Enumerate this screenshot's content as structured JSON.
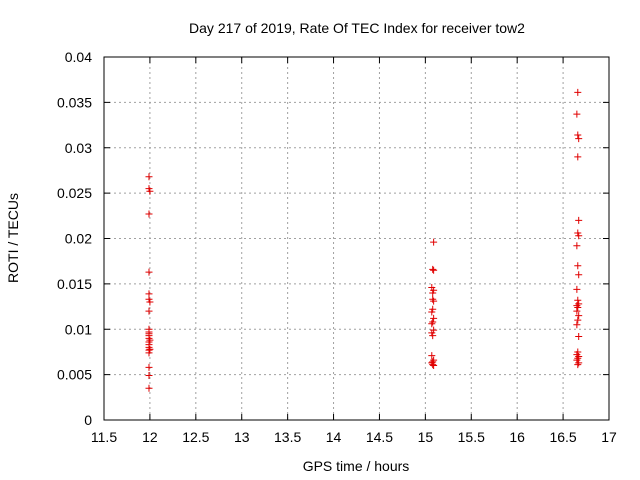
{
  "chart_data": {
    "type": "scatter",
    "title": "Day 217 of 2019, Rate Of TEC Index for receiver tow2",
    "xlabel": "GPS time / hours",
    "ylabel": "ROTI / TECUs",
    "xlim": [
      11.5,
      17
    ],
    "ylim": [
      0,
      0.04
    ],
    "x_ticks": [
      11.5,
      12,
      12.5,
      13,
      13.5,
      14,
      14.5,
      15,
      15.5,
      16,
      16.5,
      17
    ],
    "x_tick_labels": [
      "11.5",
      "12",
      "12.5",
      "13",
      "13.5",
      "14",
      "14.5",
      "15",
      "15.5",
      "16",
      "16.5",
      "17"
    ],
    "y_ticks": [
      0,
      0.005,
      0.01,
      0.015,
      0.02,
      0.025,
      0.03,
      0.035,
      0.04
    ],
    "y_tick_labels": [
      "0",
      "0.005",
      "0.01",
      "0.015",
      "0.02",
      "0.025",
      "0.03",
      "0.035",
      "0.04"
    ],
    "grid": true,
    "marker": "plus",
    "marker_color": "#e00000",
    "series": [
      {
        "x": [
          11.99,
          11.99,
          12.0,
          11.99,
          11.99,
          11.99,
          11.99,
          12.0,
          11.99,
          11.99,
          11.99,
          11.99,
          11.99,
          11.99,
          12.0,
          11.99,
          11.99,
          11.99,
          12.0,
          11.99,
          11.99,
          11.99,
          11.99,
          11.99
        ],
        "y": [
          0.0268,
          0.0255,
          0.0252,
          0.0227,
          0.0163,
          0.0139,
          0.0133,
          0.013,
          0.012,
          0.01,
          0.0097,
          0.0095,
          0.0093,
          0.009,
          0.0088,
          0.0086,
          0.0083,
          0.008,
          0.0078,
          0.0077,
          0.0074,
          0.0058,
          0.0049,
          0.0035
        ]
      },
      {
        "x": [
          15.09,
          15.08,
          15.09,
          15.07,
          15.09,
          15.08,
          15.08,
          15.09,
          15.08,
          15.07,
          15.09,
          15.08,
          15.07,
          15.09,
          15.07,
          15.08,
          15.07,
          15.09,
          15.08,
          15.07,
          15.08,
          15.09
        ],
        "y": [
          0.0196,
          0.0166,
          0.0165,
          0.0146,
          0.0143,
          0.014,
          0.0133,
          0.0131,
          0.0122,
          0.0119,
          0.0112,
          0.0108,
          0.0106,
          0.0099,
          0.0096,
          0.0093,
          0.0071,
          0.0066,
          0.0064,
          0.0063,
          0.0061,
          0.006
        ]
      },
      {
        "x": [
          16.66,
          16.65,
          16.66,
          16.67,
          16.66,
          16.67,
          16.66,
          16.67,
          16.65,
          16.66,
          16.67,
          16.65,
          16.66,
          16.67,
          16.65,
          16.66,
          16.65,
          16.67,
          16.66,
          16.65,
          16.67,
          16.66,
          16.65,
          16.67,
          16.66,
          16.65,
          16.67,
          16.66
        ],
        "y": [
          0.0361,
          0.0337,
          0.0314,
          0.031,
          0.029,
          0.022,
          0.0206,
          0.0203,
          0.0192,
          0.017,
          0.016,
          0.0144,
          0.0132,
          0.0128,
          0.0126,
          0.0124,
          0.012,
          0.0115,
          0.011,
          0.0105,
          0.0092,
          0.0075,
          0.0072,
          0.007,
          0.0068,
          0.0066,
          0.0063,
          0.0061
        ]
      }
    ]
  }
}
